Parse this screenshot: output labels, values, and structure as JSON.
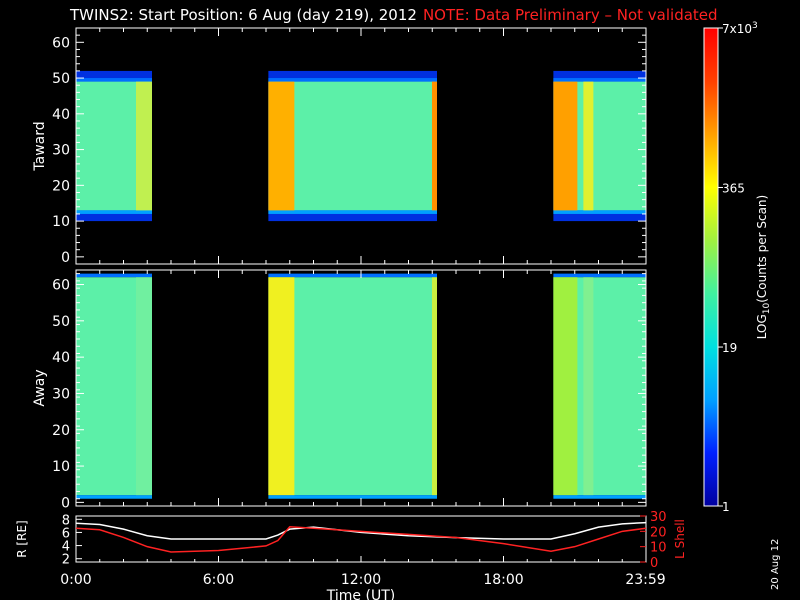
{
  "header": {
    "title": "TWINS2: Start Position:  6 Aug (day 219), 2012",
    "note": "NOTE: Data Preliminary – Not validated"
  },
  "stamp": "20 Aug 12",
  "colors": {
    "background": "#000000",
    "axis": "#ffffff",
    "note": "#ff2222",
    "r_line": "#ffffff",
    "lshell_line": "#ff2222"
  },
  "chart_data": [
    {
      "type": "heatmap",
      "panel": "toward",
      "ylabel": "Taward",
      "ylim": [
        -2,
        64
      ],
      "yticks": [
        0,
        10,
        20,
        30,
        40,
        50,
        60
      ],
      "xlim": [
        0,
        24
      ],
      "data_intervals_hours": [
        [
          0.0,
          3.2
        ],
        [
          8.1,
          15.2
        ],
        [
          20.1,
          24.0
        ]
      ],
      "filled_y_range": [
        13,
        49
      ],
      "sparse_y_range": [
        10,
        52
      ],
      "colorscale": "rainbow"
    },
    {
      "type": "heatmap",
      "panel": "away",
      "ylabel": "Away",
      "ylim": [
        -1,
        64
      ],
      "yticks": [
        0,
        10,
        20,
        30,
        40,
        50,
        60
      ],
      "xlim": [
        0,
        24
      ],
      "data_intervals_hours": [
        [
          0.0,
          3.2
        ],
        [
          8.1,
          15.2
        ],
        [
          20.1,
          24.0
        ]
      ],
      "filled_y_range": [
        2,
        62
      ],
      "colorscale": "rainbow"
    },
    {
      "type": "line",
      "panel": "orbit",
      "ylabel_left": "R [RE]",
      "ylabel_left_sub": "E",
      "ylabel_right": "L Shell",
      "xlim": [
        0,
        24
      ],
      "left_ylim": [
        1.5,
        8.5
      ],
      "left_yticks": [
        2,
        4,
        6,
        8
      ],
      "right_ylim": [
        0,
        30
      ],
      "right_yticks": [
        0,
        10,
        20,
        30
      ],
      "xticks": [
        0,
        6,
        12,
        18,
        23.98
      ],
      "xtick_labels": [
        "0:00",
        "6:00",
        "12:00",
        "18:00",
        "23:59"
      ],
      "xlabel": "Time (UT)",
      "series": [
        {
          "axis": "left",
          "x": [
            0.0,
            1.0,
            2.0,
            3.0,
            4.0,
            5.0,
            6.0,
            7.0,
            8.0,
            8.5,
            9.0,
            10.0,
            12.0,
            14.0,
            16.0,
            18.0,
            19.0,
            20.0,
            21.0,
            22.0,
            23.0,
            24.0
          ],
          "values": [
            7.4,
            7.2,
            6.5,
            5.5,
            5.0,
            5.0,
            5.0,
            5.0,
            5.0,
            5.6,
            6.5,
            6.8,
            6.0,
            5.5,
            5.2,
            5.0,
            5.0,
            5.0,
            5.8,
            6.8,
            7.3,
            7.5
          ]
        },
        {
          "axis": "right",
          "x": [
            0.0,
            1.0,
            2.0,
            3.0,
            4.0,
            6.0,
            8.0,
            8.5,
            9.0,
            10.0,
            12.0,
            14.0,
            16.0,
            18.0,
            20.0,
            21.0,
            22.0,
            23.0,
            24.0
          ],
          "values": [
            22.0,
            21.0,
            16.0,
            10.0,
            6.5,
            7.5,
            10.5,
            14.0,
            23.0,
            22.0,
            20.0,
            18.0,
            16.0,
            12.0,
            7.0,
            10.0,
            15.0,
            20.0,
            22.0
          ]
        }
      ]
    }
  ],
  "colorbar": {
    "labels": [
      {
        "main": "7x10",
        "sup": "3",
        "value": 7000
      },
      {
        "main": "365",
        "sup": "",
        "value": 365
      },
      {
        "main": "19",
        "sup": "",
        "value": 19
      },
      {
        "main": "1",
        "sup": "",
        "value": 1
      }
    ],
    "title": "LOG",
    "title_sub": "10",
    "title_rest": "(Counts per Scan)",
    "colorscale": [
      "#0000a0",
      "#0020ff",
      "#00a0ff",
      "#00e0e0",
      "#40f0a0",
      "#a0f040",
      "#ffff00",
      "#ffa000",
      "#ff4000",
      "#ff0000"
    ]
  }
}
